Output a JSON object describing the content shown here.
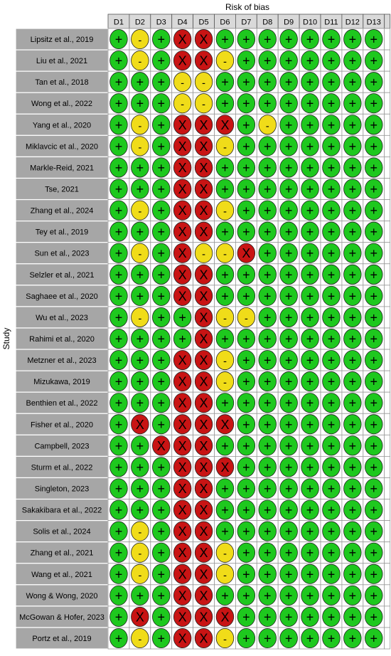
{
  "chart_data": {
    "type": "table",
    "title": "Risk of bias",
    "ylabel": "Study",
    "domains": [
      "D1",
      "D2",
      "D3",
      "D4",
      "D5",
      "D6",
      "D7",
      "D8",
      "D9",
      "D10",
      "D11",
      "D12",
      "D13"
    ],
    "studies": [
      "Lipsitz et al., 2019",
      "Liu et al., 2021",
      "Tan et al., 2018",
      "Wong et al., 2022",
      "Yang et al., 2020",
      "Miklavcic et al., 2020",
      "Markle-Reid, 2021",
      "Tse, 2021",
      "Zhang et al., 2024",
      "Tey et al., 2019",
      "Sun et al., 2023",
      "Selzler et al., 2021",
      "Saghaee et al., 2020",
      "Wu et al., 2023",
      "Rahimi et al., 2020",
      "Metzner et al., 2023",
      "Mizukawa, 2019",
      "Benthien et al., 2022",
      "Fisher et al., 2020",
      "Campbell, 2023",
      "Sturm et al., 2022",
      "Singleton, 2023",
      "Sakakibara et al., 2022",
      "Solis et al., 2024",
      "Zhang et al., 2021",
      "Wang et al., 2021",
      "Wong & Wong, 2020",
      "McGowan & Hofer, 2023",
      "Portz et al., 2019"
    ],
    "judgements": [
      [
        "+",
        "-",
        "+",
        "X",
        "X",
        "+",
        "+",
        "+",
        "+",
        "+",
        "+",
        "+",
        "+"
      ],
      [
        "+",
        "-",
        "+",
        "X",
        "X",
        "-",
        "+",
        "+",
        "+",
        "+",
        "+",
        "+",
        "+"
      ],
      [
        "+",
        "+",
        "+",
        "-",
        "-",
        "+",
        "+",
        "+",
        "+",
        "+",
        "+",
        "+",
        "+"
      ],
      [
        "+",
        "+",
        "+",
        "-",
        "-",
        "+",
        "+",
        "+",
        "+",
        "+",
        "+",
        "+",
        "+"
      ],
      [
        "+",
        "-",
        "+",
        "X",
        "X",
        "X",
        "+",
        "-",
        "+",
        "+",
        "+",
        "+",
        "+"
      ],
      [
        "+",
        "-",
        "+",
        "X",
        "X",
        "-",
        "+",
        "+",
        "+",
        "+",
        "+",
        "+",
        "+"
      ],
      [
        "+",
        "+",
        "+",
        "X",
        "X",
        "+",
        "+",
        "+",
        "+",
        "+",
        "+",
        "+",
        "+"
      ],
      [
        "+",
        "+",
        "+",
        "X",
        "X",
        "+",
        "+",
        "+",
        "+",
        "+",
        "+",
        "+",
        "+"
      ],
      [
        "+",
        "-",
        "+",
        "X",
        "X",
        "-",
        "+",
        "+",
        "+",
        "+",
        "+",
        "+",
        "+"
      ],
      [
        "+",
        "+",
        "+",
        "X",
        "X",
        "+",
        "+",
        "+",
        "+",
        "+",
        "+",
        "+",
        "+"
      ],
      [
        "+",
        "-",
        "+",
        "X",
        "-",
        "-",
        "X",
        "+",
        "+",
        "+",
        "+",
        "+",
        "+"
      ],
      [
        "+",
        "+",
        "+",
        "X",
        "X",
        "+",
        "+",
        "+",
        "+",
        "+",
        "+",
        "+",
        "+"
      ],
      [
        "+",
        "+",
        "+",
        "X",
        "X",
        "+",
        "+",
        "+",
        "+",
        "+",
        "+",
        "+",
        "+"
      ],
      [
        "+",
        "-",
        "+",
        "+",
        "X",
        "-",
        "-",
        "+",
        "+",
        "+",
        "+",
        "+",
        "+"
      ],
      [
        "+",
        "+",
        "+",
        "+",
        "X",
        "+",
        "+",
        "+",
        "+",
        "+",
        "+",
        "+",
        "+"
      ],
      [
        "+",
        "+",
        "+",
        "X",
        "X",
        "-",
        "+",
        "+",
        "+",
        "+",
        "+",
        "+",
        "+"
      ],
      [
        "+",
        "+",
        "+",
        "X",
        "X",
        "-",
        "+",
        "+",
        "+",
        "+",
        "+",
        "+",
        "+"
      ],
      [
        "+",
        "+",
        "+",
        "X",
        "X",
        "+",
        "+",
        "+",
        "+",
        "+",
        "+",
        "+",
        "+"
      ],
      [
        "+",
        "X",
        "+",
        "X",
        "X",
        "X",
        "+",
        "+",
        "+",
        "+",
        "+",
        "+",
        "+"
      ],
      [
        "+",
        "+",
        "X",
        "X",
        "X",
        "+",
        "+",
        "+",
        "+",
        "+",
        "+",
        "+",
        "+"
      ],
      [
        "+",
        "+",
        "+",
        "X",
        "X",
        "X",
        "+",
        "+",
        "+",
        "+",
        "+",
        "+",
        "+"
      ],
      [
        "+",
        "+",
        "+",
        "X",
        "X",
        "+",
        "+",
        "+",
        "+",
        "+",
        "+",
        "+",
        "+"
      ],
      [
        "+",
        "+",
        "+",
        "X",
        "X",
        "+",
        "+",
        "+",
        "+",
        "+",
        "+",
        "+",
        "+"
      ],
      [
        "+",
        "-",
        "+",
        "X",
        "X",
        "+",
        "+",
        "+",
        "+",
        "+",
        "+",
        "+",
        "+"
      ],
      [
        "+",
        "-",
        "+",
        "X",
        "X",
        "-",
        "+",
        "+",
        "+",
        "+",
        "+",
        "+",
        "+"
      ],
      [
        "+",
        "-",
        "+",
        "X",
        "X",
        "-",
        "+",
        "+",
        "+",
        "+",
        "+",
        "+",
        "+"
      ],
      [
        "+",
        "+",
        "+",
        "X",
        "X",
        "+",
        "+",
        "+",
        "+",
        "+",
        "+",
        "+",
        "+"
      ],
      [
        "+",
        "X",
        "+",
        "X",
        "X",
        "X",
        "+",
        "+",
        "+",
        "+",
        "+",
        "+",
        "+"
      ],
      [
        "+",
        "-",
        "+",
        "X",
        "X",
        "-",
        "+",
        "+",
        "+",
        "+",
        "+",
        "+",
        "+"
      ]
    ],
    "colors": {
      "+": "#1ec81e",
      "-": "#f0dc19",
      "X": "#c81414",
      "label_box": "#a6a6a6",
      "header_box": "#d9d9d9"
    }
  }
}
